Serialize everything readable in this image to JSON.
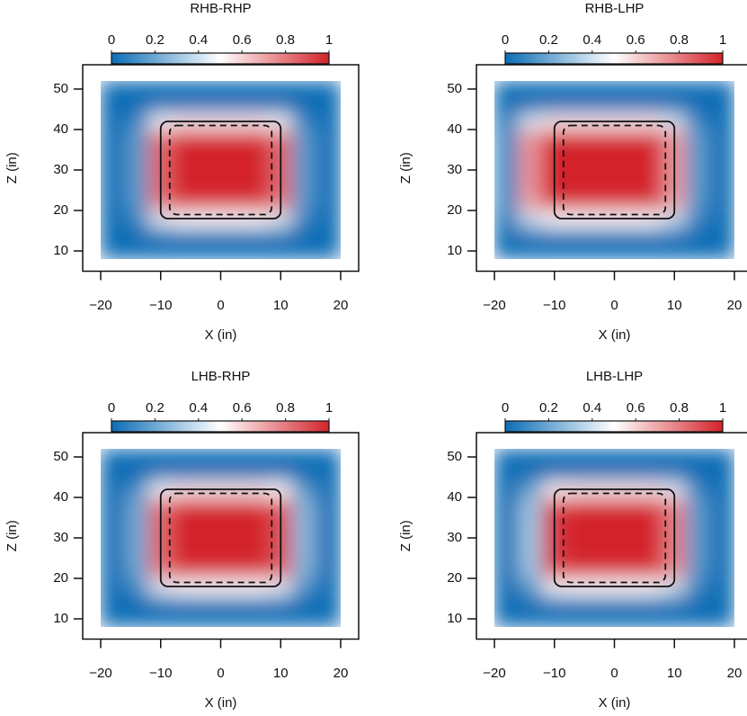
{
  "chart_data": [
    {
      "type": "heatmap",
      "title": "RHB-RHP",
      "x_label": "X (in)",
      "y_label": "Z (in)",
      "x": [
        -18,
        -14,
        -10,
        -6,
        -2,
        2,
        6,
        10,
        14,
        18
      ],
      "y": [
        10,
        14,
        18,
        22,
        26,
        30,
        34,
        38,
        42,
        46,
        50
      ],
      "z": [
        [
          0,
          0,
          0,
          0,
          0,
          0,
          0,
          0,
          0,
          0
        ],
        [
          0,
          0,
          0.04,
          0.05,
          0.05,
          0.05,
          0.05,
          0.04,
          0,
          0
        ],
        [
          0,
          0.08,
          0.43,
          0.5,
          0.5,
          0.5,
          0.5,
          0.43,
          0.08,
          0
        ],
        [
          0,
          0.14,
          0.81,
          0.95,
          0.95,
          0.95,
          0.95,
          0.81,
          0.14,
          0
        ],
        [
          0,
          0.15,
          0.85,
          1,
          1,
          1,
          1,
          0.85,
          0.15,
          0
        ],
        [
          0,
          0.15,
          0.85,
          1,
          1,
          1,
          1,
          0.85,
          0.15,
          0
        ],
        [
          0,
          0.15,
          0.85,
          1,
          1,
          1,
          1,
          0.85,
          0.15,
          0
        ],
        [
          0,
          0.15,
          0.83,
          0.98,
          0.98,
          0.98,
          0.98,
          0.83,
          0.15,
          0
        ],
        [
          0,
          0.08,
          0.47,
          0.55,
          0.55,
          0.55,
          0.55,
          0.47,
          0.08,
          0
        ],
        [
          0,
          0,
          0.02,
          0.02,
          0.02,
          0.02,
          0.02,
          0.02,
          0,
          0
        ],
        [
          0,
          0,
          0,
          0,
          0,
          0,
          0,
          0,
          0,
          0
        ]
      ],
      "xlim": [
        -23,
        23
      ],
      "ylim": [
        5,
        56
      ],
      "xticks": [
        {
          "value": -20,
          "label": "−20"
        },
        {
          "value": -10,
          "label": "−10"
        },
        0,
        10,
        20
      ],
      "yticks": [
        10,
        20,
        30,
        40,
        50
      ],
      "clim": [
        0,
        1
      ],
      "cticks": [
        0,
        0.2,
        0.4,
        0.6,
        0.8,
        1
      ],
      "colormap": [
        "#0b6db5",
        "#ffffff",
        "#d3232a"
      ],
      "zone_solid": {
        "x": [
          -10,
          10
        ],
        "y": [
          18,
          42
        ]
      },
      "zone_dashed": {
        "x": [
          -8.5,
          8.5
        ],
        "y": [
          19,
          41
        ]
      }
    },
    {
      "type": "heatmap",
      "title": "RHB-LHP",
      "x_label": "X (in)",
      "y_label": "Z (in)",
      "x": [
        -18,
        -14,
        -10,
        -6,
        -2,
        2,
        6,
        10,
        14,
        18
      ],
      "y": [
        10,
        14,
        18,
        22,
        26,
        30,
        34,
        38,
        42,
        46,
        50
      ],
      "z": [
        [
          0,
          0,
          0,
          0,
          0,
          0,
          0,
          0,
          0,
          0
        ],
        [
          0,
          0.04,
          0.05,
          0.05,
          0.05,
          0.05,
          0.05,
          0.04,
          0,
          0
        ],
        [
          0.05,
          0.38,
          0.5,
          0.5,
          0.5,
          0.5,
          0.5,
          0.38,
          0.08,
          0
        ],
        [
          0.1,
          0.71,
          0.95,
          0.95,
          0.95,
          0.95,
          0.95,
          0.71,
          0.14,
          0
        ],
        [
          0.1,
          0.75,
          1,
          1,
          1,
          1,
          1,
          0.75,
          0.15,
          0
        ],
        [
          0.1,
          0.75,
          1,
          1,
          1,
          1,
          1,
          0.75,
          0.15,
          0
        ],
        [
          0.1,
          0.75,
          1,
          1,
          1,
          1,
          1,
          0.75,
          0.15,
          0
        ],
        [
          0.1,
          0.74,
          0.98,
          0.98,
          0.98,
          0.98,
          0.98,
          0.74,
          0.15,
          0
        ],
        [
          0.06,
          0.41,
          0.55,
          0.55,
          0.55,
          0.55,
          0.55,
          0.41,
          0.08,
          0
        ],
        [
          0,
          0.02,
          0.02,
          0.02,
          0.02,
          0.02,
          0.02,
          0.02,
          0,
          0
        ],
        [
          0,
          0,
          0,
          0,
          0,
          0,
          0,
          0,
          0,
          0
        ]
      ],
      "xlim": [
        -23,
        23
      ],
      "ylim": [
        5,
        56
      ],
      "xticks": [
        {
          "value": -20,
          "label": "−20"
        },
        {
          "value": -10,
          "label": "−10"
        },
        0,
        10,
        20
      ],
      "yticks": [
        10,
        20,
        30,
        40,
        50
      ],
      "clim": [
        0,
        1
      ],
      "cticks": [
        0,
        0.2,
        0.4,
        0.6,
        0.8,
        1
      ],
      "colormap": [
        "#0b6db5",
        "#ffffff",
        "#d3232a"
      ],
      "zone_solid": {
        "x": [
          -10,
          10
        ],
        "y": [
          18,
          42
        ]
      },
      "zone_dashed": {
        "x": [
          -8.5,
          8.5
        ],
        "y": [
          19,
          41
        ]
      }
    },
    {
      "type": "heatmap",
      "title": "LHB-RHP",
      "x_label": "X (in)",
      "y_label": "Z (in)",
      "x": [
        -18,
        -14,
        -10,
        -6,
        -2,
        2,
        6,
        10,
        14,
        18
      ],
      "y": [
        10,
        14,
        18,
        22,
        26,
        30,
        34,
        38,
        42,
        46,
        50
      ],
      "z": [
        [
          0,
          0,
          0,
          0,
          0,
          0,
          0,
          0,
          0,
          0
        ],
        [
          0,
          0.01,
          0.04,
          0.05,
          0.05,
          0.05,
          0.05,
          0.05,
          0.01,
          0
        ],
        [
          0,
          0.1,
          0.43,
          0.5,
          0.5,
          0.5,
          0.5,
          0.45,
          0.13,
          0
        ],
        [
          0,
          0.19,
          0.81,
          0.95,
          0.95,
          0.95,
          0.95,
          0.86,
          0.24,
          0
        ],
        [
          0,
          0.2,
          0.85,
          1,
          1,
          1,
          1,
          0.9,
          0.25,
          0
        ],
        [
          0,
          0.2,
          0.85,
          1,
          1,
          1,
          1,
          0.9,
          0.25,
          0
        ],
        [
          0,
          0.2,
          0.85,
          1,
          1,
          1,
          1,
          0.9,
          0.25,
          0
        ],
        [
          0,
          0.2,
          0.83,
          0.98,
          0.98,
          0.98,
          0.98,
          0.88,
          0.25,
          0
        ],
        [
          0,
          0.11,
          0.47,
          0.55,
          0.55,
          0.55,
          0.55,
          0.5,
          0.14,
          0
        ],
        [
          0,
          0,
          0.02,
          0.02,
          0.02,
          0.02,
          0.02,
          0.02,
          0.01,
          0
        ],
        [
          0,
          0,
          0,
          0,
          0,
          0,
          0,
          0,
          0,
          0
        ]
      ],
      "xlim": [
        -23,
        23
      ],
      "ylim": [
        5,
        56
      ],
      "xticks": [
        {
          "value": -20,
          "label": "−20"
        },
        {
          "value": -10,
          "label": "−10"
        },
        0,
        10,
        20
      ],
      "yticks": [
        10,
        20,
        30,
        40,
        50
      ],
      "clim": [
        0,
        1
      ],
      "cticks": [
        0,
        0.2,
        0.4,
        0.6,
        0.8,
        1
      ],
      "colormap": [
        "#0b6db5",
        "#ffffff",
        "#d3232a"
      ],
      "zone_solid": {
        "x": [
          -10,
          10
        ],
        "y": [
          18,
          42
        ]
      },
      "zone_dashed": {
        "x": [
          -8.5,
          8.5
        ],
        "y": [
          19,
          41
        ]
      }
    },
    {
      "type": "heatmap",
      "title": "LHB-LHP",
      "x_label": "X (in)",
      "y_label": "Z (in)",
      "x": [
        -18,
        -14,
        -10,
        -6,
        -2,
        2,
        6,
        10,
        14,
        18
      ],
      "y": [
        10,
        14,
        18,
        22,
        26,
        30,
        34,
        38,
        42,
        46,
        50
      ],
      "z": [
        [
          0,
          0,
          0,
          0,
          0,
          0,
          0,
          0,
          0,
          0
        ],
        [
          0,
          0.02,
          0.05,
          0.05,
          0.05,
          0.05,
          0.05,
          0.04,
          0,
          0
        ],
        [
          0,
          0.15,
          0.48,
          0.5,
          0.5,
          0.5,
          0.5,
          0.4,
          0.08,
          0
        ],
        [
          0,
          0.29,
          0.9,
          0.95,
          0.95,
          0.95,
          0.95,
          0.76,
          0.14,
          0
        ],
        [
          0,
          0.3,
          0.95,
          1,
          1,
          1,
          1,
          0.8,
          0.15,
          0
        ],
        [
          0,
          0.3,
          0.95,
          1,
          1,
          1,
          1,
          0.8,
          0.15,
          0
        ],
        [
          0,
          0.3,
          0.95,
          1,
          1,
          1,
          1,
          0.8,
          0.15,
          0
        ],
        [
          0,
          0.29,
          0.93,
          0.98,
          0.98,
          0.98,
          0.98,
          0.78,
          0.15,
          0
        ],
        [
          0,
          0.17,
          0.52,
          0.55,
          0.55,
          0.55,
          0.55,
          0.44,
          0.08,
          0
        ],
        [
          0,
          0.01,
          0.02,
          0.02,
          0.02,
          0.02,
          0.02,
          0.02,
          0,
          0
        ],
        [
          0,
          0,
          0,
          0,
          0,
          0,
          0,
          0,
          0,
          0
        ]
      ],
      "xlim": [
        -23,
        23
      ],
      "ylim": [
        5,
        56
      ],
      "xticks": [
        {
          "value": -20,
          "label": "−20"
        },
        {
          "value": -10,
          "label": "−10"
        },
        0,
        10,
        20
      ],
      "yticks": [
        10,
        20,
        30,
        40,
        50
      ],
      "clim": [
        0,
        1
      ],
      "cticks": [
        0,
        0.2,
        0.4,
        0.6,
        0.8,
        1
      ],
      "colormap": [
        "#0b6db5",
        "#ffffff",
        "#d3232a"
      ],
      "zone_solid": {
        "x": [
          -10,
          10
        ],
        "y": [
          18,
          42
        ]
      },
      "zone_dashed": {
        "x": [
          -8.5,
          8.5
        ],
        "y": [
          19,
          41
        ]
      }
    }
  ]
}
